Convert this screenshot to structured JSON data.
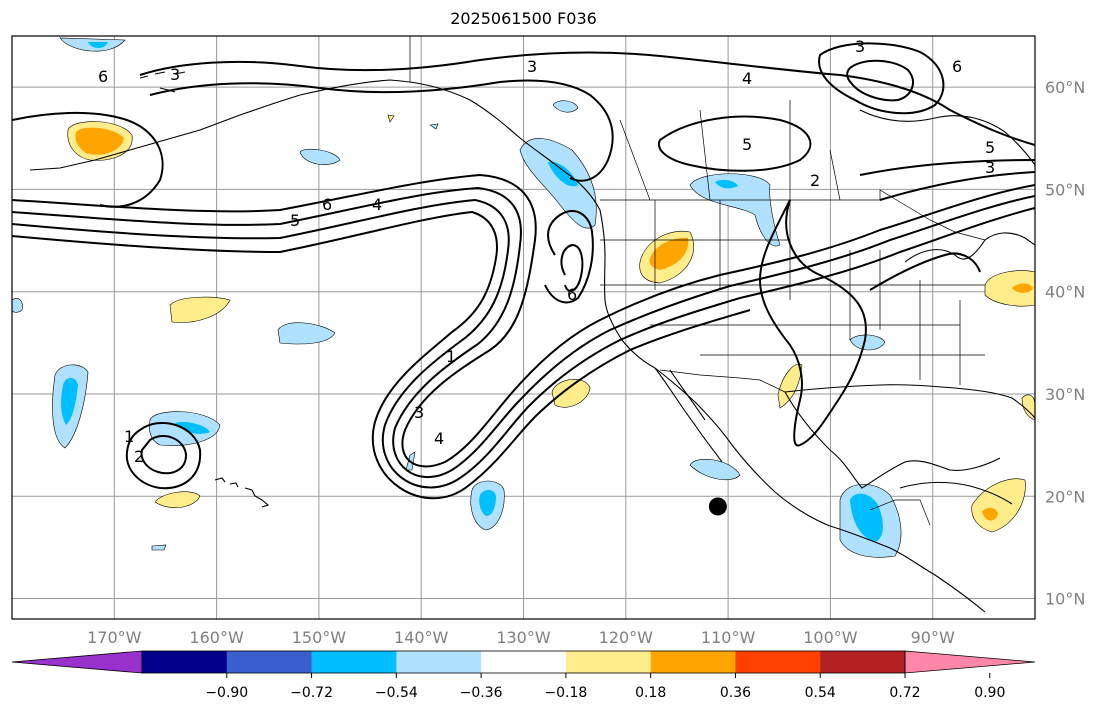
{
  "title": "2025061500 F036",
  "map": {
    "projection": "equirectangular",
    "extent": {
      "lon_min": -180,
      "lon_max": -80,
      "lat_min": 8,
      "lat_max": 65
    },
    "gridlines": true,
    "lon_ticks": [
      {
        "lon": -170,
        "label": "170°W"
      },
      {
        "lon": -160,
        "label": "160°W"
      },
      {
        "lon": -150,
        "label": "150°W"
      },
      {
        "lon": -140,
        "label": "140°W"
      },
      {
        "lon": -130,
        "label": "130°W"
      },
      {
        "lon": -120,
        "label": "120°W"
      },
      {
        "lon": -110,
        "label": "110°W"
      },
      {
        "lon": -100,
        "label": "100°W"
      },
      {
        "lon": -90,
        "label": "90°W"
      }
    ],
    "lat_ticks": [
      {
        "lat": 60,
        "label": "60°N"
      },
      {
        "lat": 50,
        "label": "50°N"
      },
      {
        "lat": 40,
        "label": "40°N"
      },
      {
        "lat": 30,
        "label": "30°N"
      },
      {
        "lat": 20,
        "label": "20°N"
      },
      {
        "lat": 10,
        "label": "10°N"
      }
    ],
    "marker": {
      "lon": -111,
      "lat": 19,
      "color": "#000000"
    },
    "contour_labels": [
      "1",
      "2",
      "3",
      "4",
      "5",
      "6"
    ]
  },
  "colorbar": {
    "colors": [
      "#9932cc",
      "#00008b",
      "#3a5fcd",
      "#00bfff",
      "#b0e2ff",
      "#ffffff",
      "#ffec8b",
      "#ffa500",
      "#ff4000",
      "#b22222",
      "#ff88aa"
    ],
    "ticks": [
      "−0.90",
      "−0.72",
      "−0.54",
      "−0.36",
      "−0.18",
      "0.18",
      "0.36",
      "0.54",
      "0.72",
      "0.90"
    ],
    "extend": "both"
  }
}
